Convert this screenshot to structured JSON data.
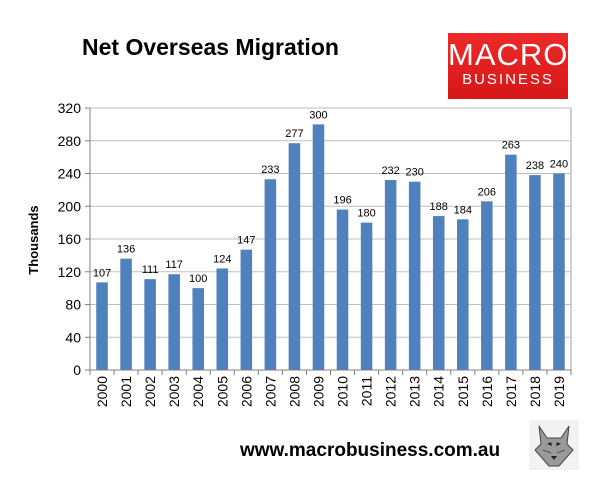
{
  "title": "Net Overseas Migration",
  "logo": {
    "line1": "MACRO",
    "line2": "BUSINESS"
  },
  "footer": {
    "url": "www.macrobusiness.com.au"
  },
  "colors": {
    "bar": "#4f81bd",
    "plot_bg": "#ffffff",
    "grid": "#bfbfbf",
    "logo_bg": "#e02020"
  },
  "chart_data": {
    "type": "bar",
    "title": "Net Overseas Migration",
    "xlabel": "",
    "ylabel": "Thousands",
    "categories": [
      "2000",
      "2001",
      "2002",
      "2003",
      "2004",
      "2005",
      "2006",
      "2007",
      "2008",
      "2009",
      "2010",
      "2011",
      "2012",
      "2013",
      "2014",
      "2015",
      "2016",
      "2017",
      "2018",
      "2019"
    ],
    "values": [
      107,
      136,
      111,
      117,
      100,
      124,
      147,
      233,
      277,
      300,
      196,
      180,
      232,
      230,
      188,
      184,
      206,
      263,
      238,
      240
    ],
    "ylim": [
      0,
      320
    ],
    "yticks": [
      0,
      40,
      80,
      120,
      160,
      200,
      240,
      280,
      320
    ],
    "grid": true,
    "data_labels": true
  }
}
